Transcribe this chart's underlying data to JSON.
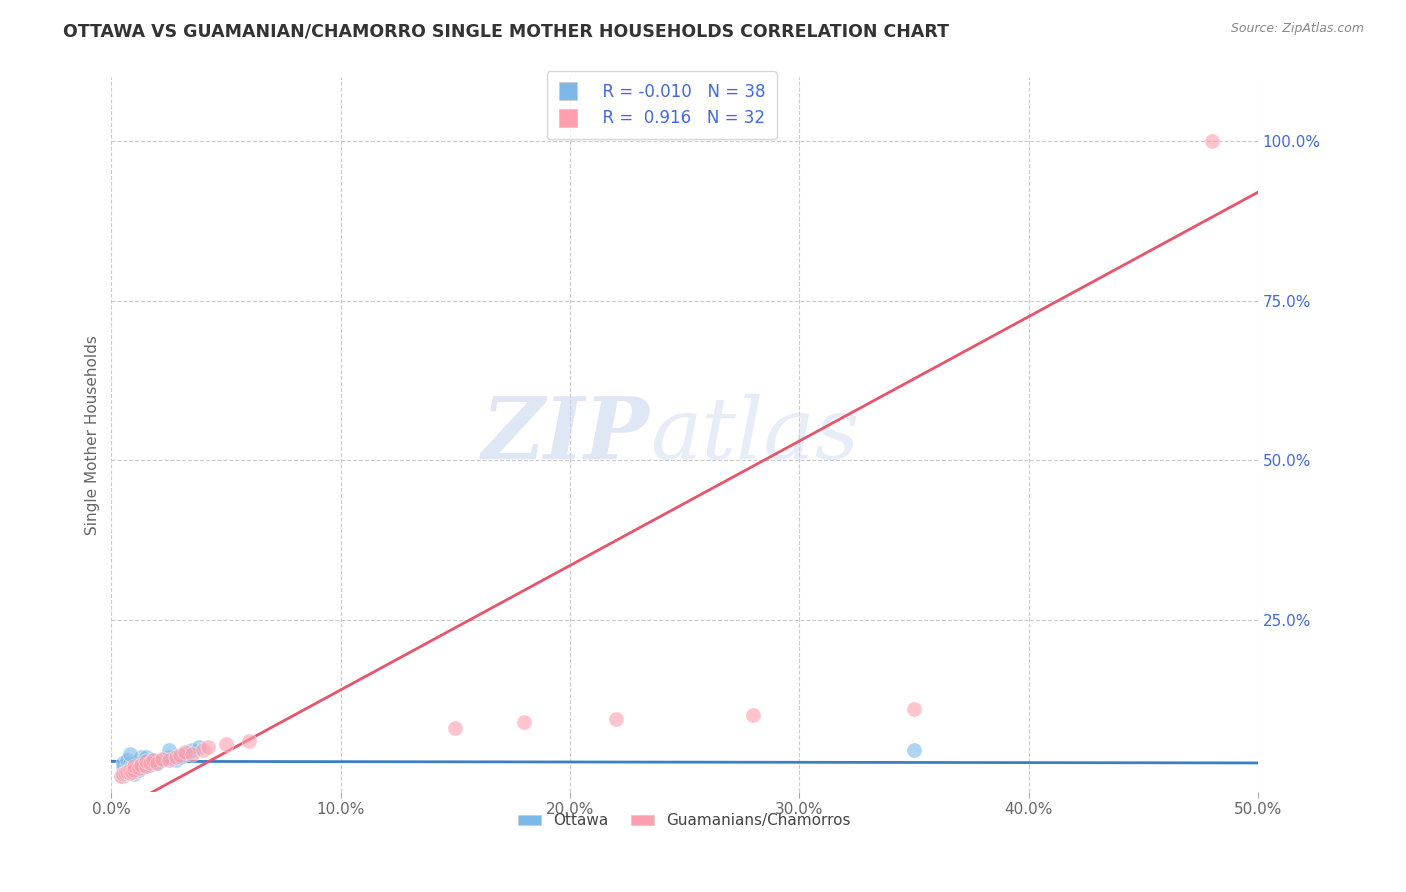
{
  "title": "OTTAWA VS GUAMANIAN/CHAMORRO SINGLE MOTHER HOUSEHOLDS CORRELATION CHART",
  "source_text": "Source: ZipAtlas.com",
  "ylabel": "Single Mother Households",
  "watermark": "ZIPatlas",
  "xlim": [
    0.0,
    0.5
  ],
  "ylim": [
    -0.02,
    1.1
  ],
  "xtick_labels": [
    "0.0%",
    "10.0%",
    "20.0%",
    "30.0%",
    "40.0%",
    "50.0%"
  ],
  "xtick_values": [
    0.0,
    0.1,
    0.2,
    0.3,
    0.4,
    0.5
  ],
  "ytick_labels": [
    "25.0%",
    "50.0%",
    "75.0%",
    "100.0%"
  ],
  "ytick_values": [
    0.25,
    0.5,
    0.75,
    1.0
  ],
  "ottawa_scatter_color": "#7CB9E8",
  "guam_scatter_color": "#FF9EAD",
  "trendline_ottawa_color": "#3A7FC1",
  "trendline_guam_color": "#E8546A",
  "legend_R1": "-0.010",
  "legend_N1": "38",
  "legend_R2": "0.916",
  "legend_N2": "32",
  "legend_text_color": "#4169E1",
  "title_color": "#333333",
  "grid_color": "#CCCCCC",
  "background_color": "#FFFFFF",
  "ottawa_x": [
    0.005,
    0.005,
    0.005,
    0.005,
    0.007,
    0.007,
    0.007,
    0.008,
    0.008,
    0.008,
    0.009,
    0.009,
    0.01,
    0.01,
    0.01,
    0.01,
    0.012,
    0.012,
    0.013,
    0.013,
    0.013,
    0.015,
    0.015,
    0.015,
    0.017,
    0.018,
    0.02,
    0.022,
    0.025,
    0.025,
    0.028,
    0.03,
    0.032,
    0.035,
    0.038,
    0.35,
    0.005,
    0.008
  ],
  "ottawa_y": [
    0.01,
    0.015,
    0.02,
    0.025,
    0.015,
    0.02,
    0.03,
    0.012,
    0.018,
    0.025,
    0.015,
    0.022,
    0.008,
    0.012,
    0.018,
    0.025,
    0.015,
    0.022,
    0.018,
    0.025,
    0.035,
    0.02,
    0.028,
    0.035,
    0.022,
    0.03,
    0.025,
    0.03,
    0.035,
    0.045,
    0.03,
    0.035,
    0.04,
    0.045,
    0.05,
    0.045,
    0.005,
    0.04
  ],
  "guam_x": [
    0.004,
    0.005,
    0.006,
    0.007,
    0.008,
    0.008,
    0.009,
    0.01,
    0.01,
    0.012,
    0.013,
    0.015,
    0.015,
    0.017,
    0.018,
    0.02,
    0.022,
    0.025,
    0.028,
    0.03,
    0.032,
    0.035,
    0.04,
    0.042,
    0.05,
    0.06,
    0.15,
    0.18,
    0.22,
    0.28,
    0.35,
    0.48
  ],
  "guam_y": [
    0.005,
    0.008,
    0.01,
    0.012,
    0.01,
    0.015,
    0.012,
    0.015,
    0.02,
    0.018,
    0.022,
    0.02,
    0.028,
    0.025,
    0.03,
    0.025,
    0.032,
    0.03,
    0.035,
    0.038,
    0.042,
    0.04,
    0.045,
    0.05,
    0.055,
    0.06,
    0.08,
    0.09,
    0.095,
    0.1,
    0.11,
    1.0
  ]
}
